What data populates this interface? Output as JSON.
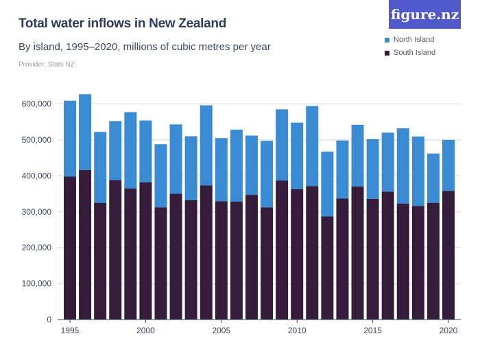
{
  "logo_text": "figure.nz",
  "chart_data": {
    "type": "bar",
    "stacked": true,
    "title": "Total water inflows in New Zealand",
    "subtitle": "By island, 1995–2020, millions of cubic metres per year",
    "provider": "Provider: Stats NZ",
    "xlabel": "",
    "ylabel": "",
    "ylim": [
      0,
      600000
    ],
    "yticks": [
      "0",
      "100,000",
      "200,000",
      "300,000",
      "400,000",
      "500,000",
      "600,000"
    ],
    "xticks": [
      "1995",
      "2000",
      "2005",
      "2010",
      "2015",
      "2020"
    ],
    "grid": true,
    "legend_position": "top-right",
    "categories": [
      1995,
      1996,
      1997,
      1998,
      1999,
      2000,
      2001,
      2002,
      2003,
      2004,
      2005,
      2006,
      2007,
      2008,
      2009,
      2010,
      2011,
      2012,
      2013,
      2014,
      2015,
      2016,
      2017,
      2018,
      2019,
      2020
    ],
    "series": [
      {
        "name": "South Island",
        "color": "#351c3b",
        "values": [
          398000,
          416000,
          325000,
          388000,
          365000,
          382000,
          312000,
          350000,
          332000,
          373000,
          329000,
          328000,
          347000,
          312000,
          387000,
          363000,
          371000,
          287000,
          337000,
          370000,
          336000,
          356000,
          323000,
          316000,
          325000,
          358000
        ]
      },
      {
        "name": "North Island",
        "color": "#3a8bd4",
        "values": [
          211000,
          211000,
          197000,
          164000,
          212000,
          172000,
          176000,
          193000,
          178000,
          223000,
          176000,
          200000,
          165000,
          185000,
          198000,
          185000,
          223000,
          180000,
          161000,
          172000,
          166000,
          164000,
          209000,
          193000,
          137000,
          142000
        ]
      }
    ]
  }
}
